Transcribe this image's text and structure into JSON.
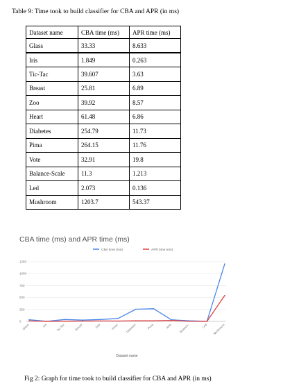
{
  "table": {
    "caption": "Table 9: Time took to build classifier for CBA and APR (in ms)",
    "headers": [
      "Dataset name",
      "CBA time (ms)",
      "APR time (ms)"
    ],
    "rows": [
      [
        "Glass",
        "33.33",
        "8.633"
      ],
      [
        "Iris",
        "1.849",
        "0.263"
      ],
      [
        "Tic-Tac",
        "39.607",
        "3.63"
      ],
      [
        "Breast",
        "25.81",
        "6.89"
      ],
      [
        "Zoo",
        "39.92",
        "8.57"
      ],
      [
        "Heart",
        "61.48",
        "6.86"
      ],
      [
        "Diabetes",
        "254.79",
        "11.73"
      ],
      [
        "Pima",
        "264.15",
        "11.76"
      ],
      [
        "Vote",
        "32.91",
        "19.8"
      ],
      [
        "Balance-Scale",
        "11.3",
        "1.213"
      ],
      [
        "Led",
        "2.073",
        "0.136"
      ],
      [
        "Mushroom",
        "1203.7",
        "543.37"
      ]
    ]
  },
  "chart_data": {
    "type": "line",
    "title": "CBA time (ms) and APR time (ms)",
    "xlabel": "Dataset name",
    "ylabel": "",
    "categories": [
      "Glass",
      "Iris",
      "Tic-Tac",
      "Breast",
      "Zoo",
      "Heart",
      "Diabetes",
      "Pima",
      "Vote",
      "Balance-",
      "Led",
      "Mushroom"
    ],
    "series": [
      {
        "name": "CBA time (ms)",
        "color": "#4a86e8",
        "values": [
          33.33,
          1.849,
          39.607,
          25.81,
          39.92,
          61.48,
          254.79,
          264.15,
          32.91,
          11.3,
          2.073,
          1203.7
        ]
      },
      {
        "name": "APR time (ms)",
        "color": "#e04141",
        "values": [
          8.633,
          0.263,
          3.63,
          6.89,
          8.57,
          6.86,
          11.73,
          11.76,
          19.8,
          1.213,
          0.136,
          543.37
        ]
      }
    ],
    "yticks": [
      "1250",
      "1000",
      "750",
      "500",
      "250",
      "0"
    ],
    "ylim": [
      0,
      1250
    ],
    "grid": true,
    "legend": "top"
  },
  "figure_caption": "Fig 2: Graph for time took to build classifier for CBA and APR (in ms)"
}
